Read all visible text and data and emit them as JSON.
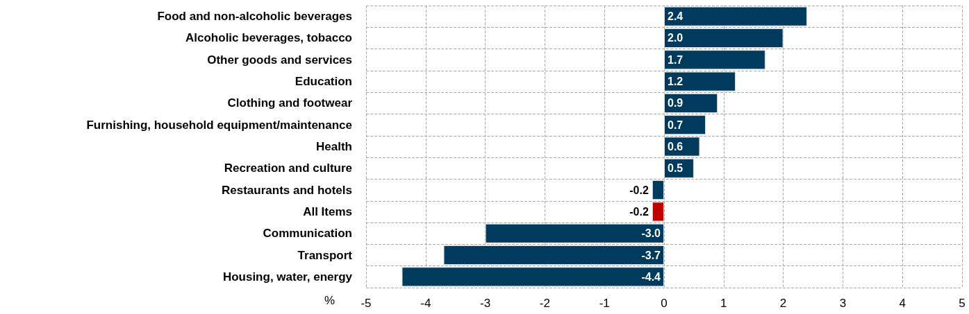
{
  "chart_data": {
    "type": "bar",
    "orientation": "horizontal",
    "xlabel": "%",
    "categories": [
      "Food and non-alcoholic beverages",
      "Alcoholic beverages, tobacco",
      "Other goods and services",
      "Education",
      "Clothing and footwear",
      "Furnishing, household equipment/maintenance",
      "Health",
      "Recreation and culture",
      "Restaurants and hotels",
      "All Items",
      "Communication",
      "Transport",
      "Housing, water, energy"
    ],
    "values": [
      2.4,
      2.0,
      1.7,
      1.2,
      0.9,
      0.7,
      0.6,
      0.5,
      -0.2,
      -0.2,
      -3.0,
      -3.7,
      -4.4
    ],
    "value_labels": [
      "2.4",
      "2.0",
      "1.7",
      "1.2",
      "0.9",
      "0.7",
      "0.6",
      "0.5",
      "-0.2",
      "-0.2",
      "-3.0",
      "-3.7",
      "-4.4"
    ],
    "colors": [
      "#003a5c",
      "#003a5c",
      "#003a5c",
      "#003a5c",
      "#003a5c",
      "#003a5c",
      "#003a5c",
      "#003a5c",
      "#003a5c",
      "#c00000",
      "#003a5c",
      "#003a5c",
      "#003a5c"
    ],
    "xlim": [
      -5,
      5
    ],
    "xticks": [
      -5,
      -4,
      -3,
      -2,
      -1,
      0,
      1,
      2,
      3,
      4,
      5
    ],
    "grid": true
  }
}
